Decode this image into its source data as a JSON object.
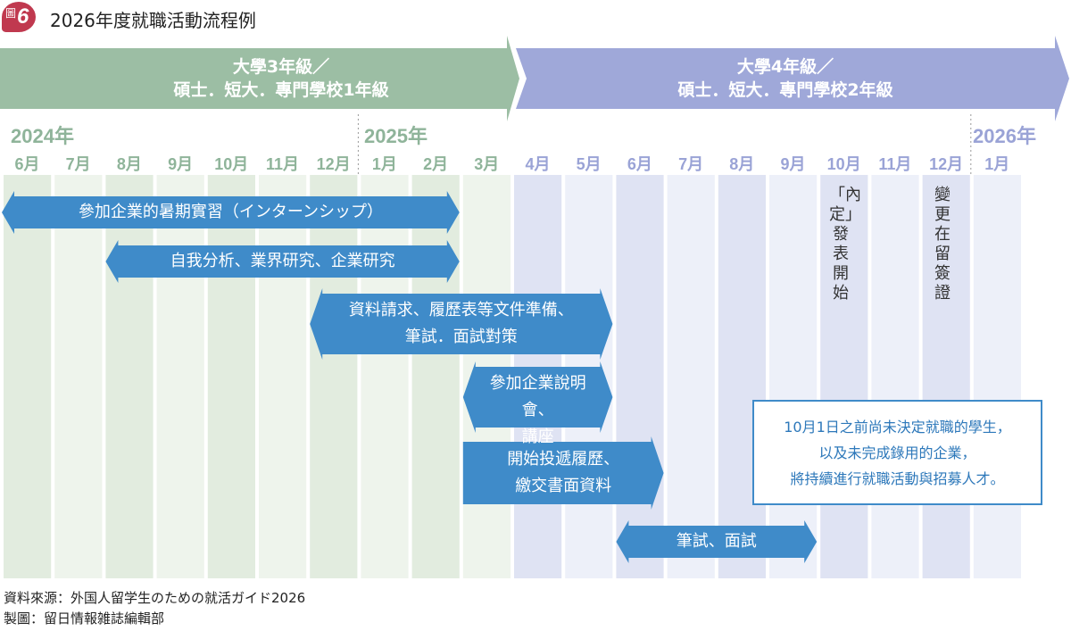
{
  "title": {
    "badge_char": "圖",
    "badge_num": "6",
    "text": "2026年度就職活動流程例"
  },
  "phases": [
    {
      "line1": "大學3年級／",
      "line2": "碩士．短大．專門學校1年級",
      "color": "#9cbea4"
    },
    {
      "line1": "大學4年級／",
      "line2": "碩士．短大．專門學校2年級",
      "color": "#9fa8d9"
    }
  ],
  "years": [
    "2024年",
    "2025年",
    "2026年"
  ],
  "months": [
    "6月",
    "7月",
    "8月",
    "9月",
    "10月",
    "11月",
    "12月",
    "1月",
    "2月",
    "3月",
    "4月",
    "5月",
    "6月",
    "7月",
    "8月",
    "9月",
    "10月",
    "11月",
    "12月",
    "1月"
  ],
  "activities": [
    {
      "label_lines": [
        "參加企業的暑期實習（インターンシップ）"
      ],
      "start_month": 0,
      "end_month": 8,
      "left_arrow": true
    },
    {
      "label_lines": [
        "自我分析、業界研究、企業研究"
      ],
      "start_month": 2,
      "end_month": 8,
      "left_arrow": true
    },
    {
      "label_lines": [
        "資料請求、履歷表等文件準備、",
        "筆試．面試對策"
      ],
      "start_month": 6,
      "end_month": 11,
      "left_arrow": true
    },
    {
      "label_lines": [
        "參加企業說明會、",
        "講座"
      ],
      "start_month": 9,
      "end_month": 11,
      "left_arrow": true
    },
    {
      "label_lines": [
        "開始投遞履歷、",
        "繳交書面資料"
      ],
      "start_month": 9,
      "end_month": 12,
      "left_arrow": false
    },
    {
      "label_lines": [
        "筆試、面試"
      ],
      "start_month": 12,
      "end_month": 15,
      "left_arrow": true
    }
  ],
  "milestones": [
    {
      "text": "「內定」發表開始",
      "month": 16
    },
    {
      "text": "變更在留簽證",
      "month": 18
    }
  ],
  "note": {
    "line1": "10月1日之前尚未決定就職的學生，",
    "line2": "以及未完成錄用的企業，",
    "line3": "將持續進行就職活動與招募人才。"
  },
  "footer": {
    "source": "資料來源：外国人留学生のための就活ガイド2026",
    "credit": "製圖：留日情報雑誌編輯部"
  },
  "colors": {
    "green_band": "#9cbea4",
    "blue_band": "#9fa8d9",
    "green_col": "#e2ecdf",
    "blue_col": "#dfe3f3",
    "arrow": "#3f8bc9"
  }
}
